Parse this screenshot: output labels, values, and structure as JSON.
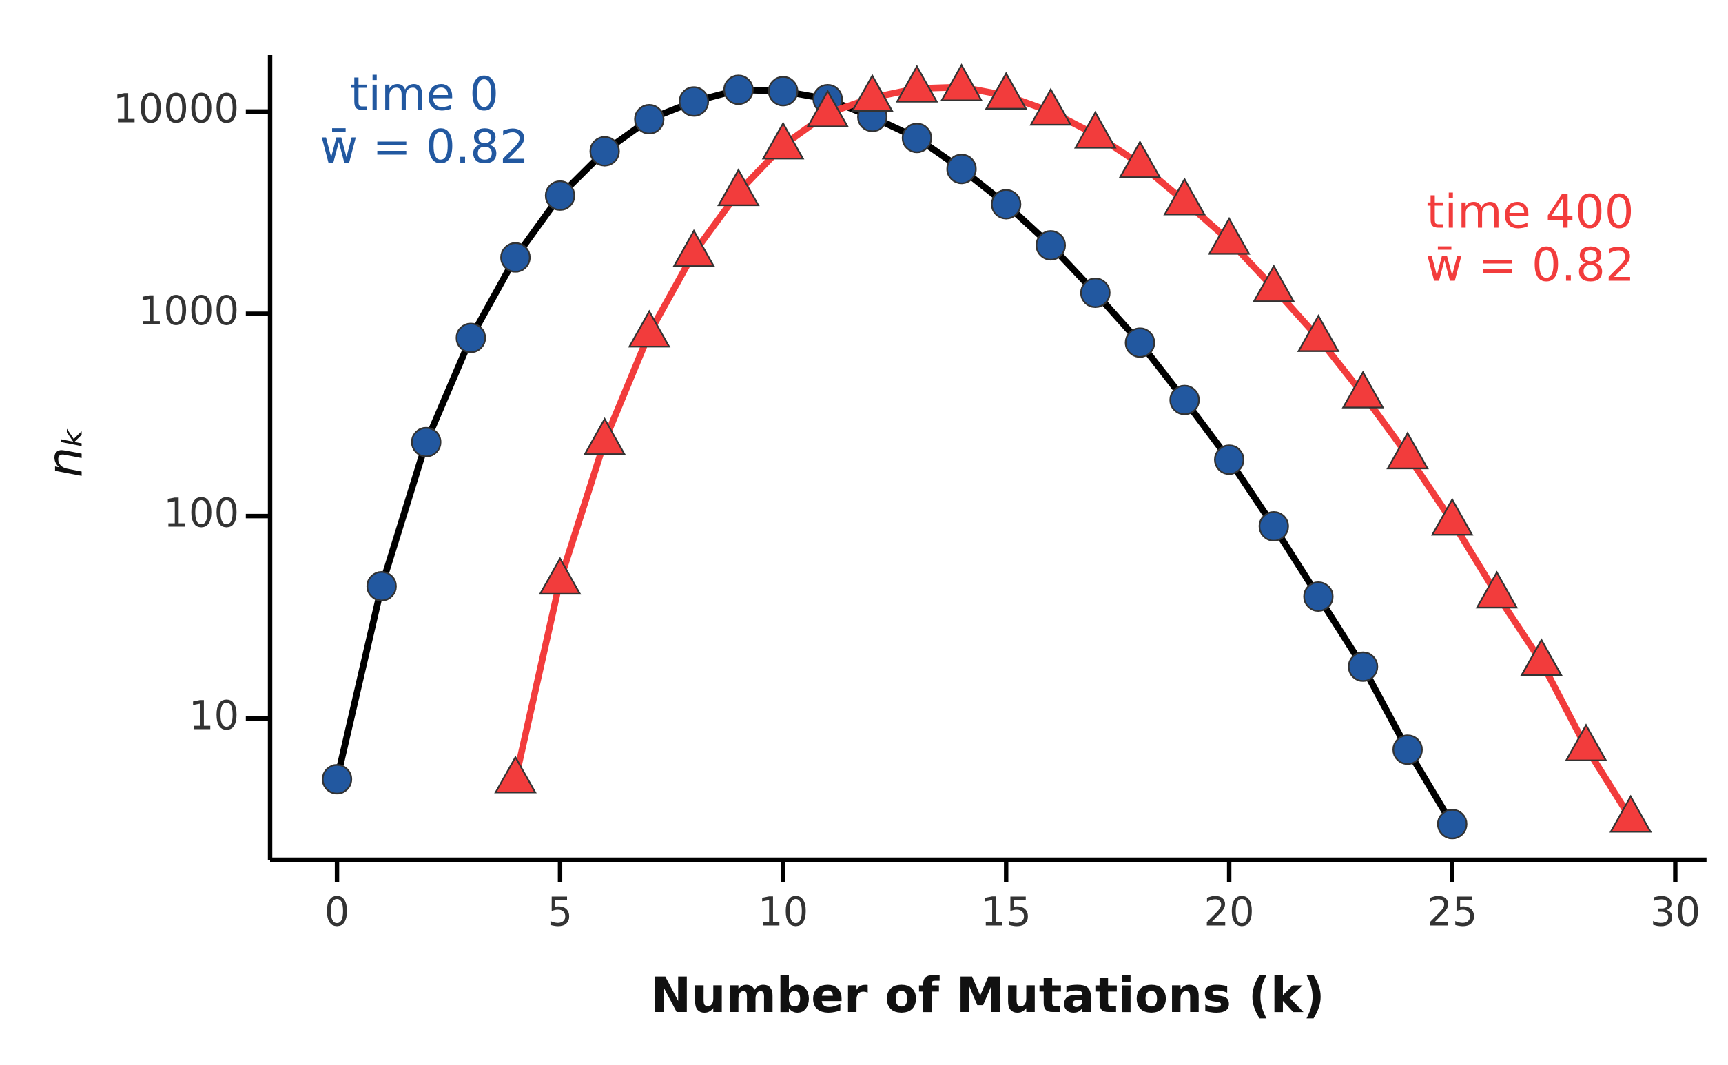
{
  "chart_data": {
    "type": "line",
    "xlabel": "Number of Mutations (k)",
    "ylabel": "nₖ",
    "xlim": [
      -1.5,
      30.7
    ],
    "xticks": [
      0,
      5,
      10,
      15,
      20,
      25,
      30
    ],
    "ylim": [
      2,
      19000
    ],
    "yticks": [
      10,
      100,
      1000,
      10000
    ],
    "log_y": true,
    "grid": false,
    "series": [
      {
        "name": "time 0",
        "annotation": "w̄ = 0.82",
        "color": "#2258a0",
        "line_color": "#000000",
        "marker": "circle",
        "x": [
          0,
          1,
          2,
          3,
          4,
          5,
          6,
          7,
          8,
          9,
          10,
          11,
          12,
          13,
          14,
          15,
          16,
          17,
          18,
          19,
          20,
          21,
          22,
          23,
          24,
          25
        ],
        "values": [
          5,
          45,
          232,
          760,
          1900,
          3840,
          6360,
          9160,
          11200,
          12800,
          12600,
          11500,
          9400,
          7400,
          5200,
          3480,
          2180,
          1270,
          720,
          375,
          190,
          89,
          40,
          18,
          7,
          3
        ]
      },
      {
        "name": "time 400",
        "annotation": "w̄ = 0.82",
        "color": "#f23c3c",
        "line_color": "#f23c3c",
        "marker": "triangle",
        "x": [
          4,
          5,
          6,
          7,
          8,
          9,
          10,
          11,
          12,
          13,
          14,
          15,
          16,
          17,
          18,
          19,
          20,
          21,
          22,
          23,
          24,
          25,
          26,
          27,
          28,
          29
        ],
        "values": [
          5,
          48,
          235,
          800,
          2000,
          4000,
          6800,
          9800,
          11700,
          13000,
          13200,
          12000,
          10000,
          7700,
          5500,
          3600,
          2300,
          1340,
          760,
          400,
          200,
          94,
          41,
          19,
          7.2,
          3.2
        ]
      }
    ]
  }
}
